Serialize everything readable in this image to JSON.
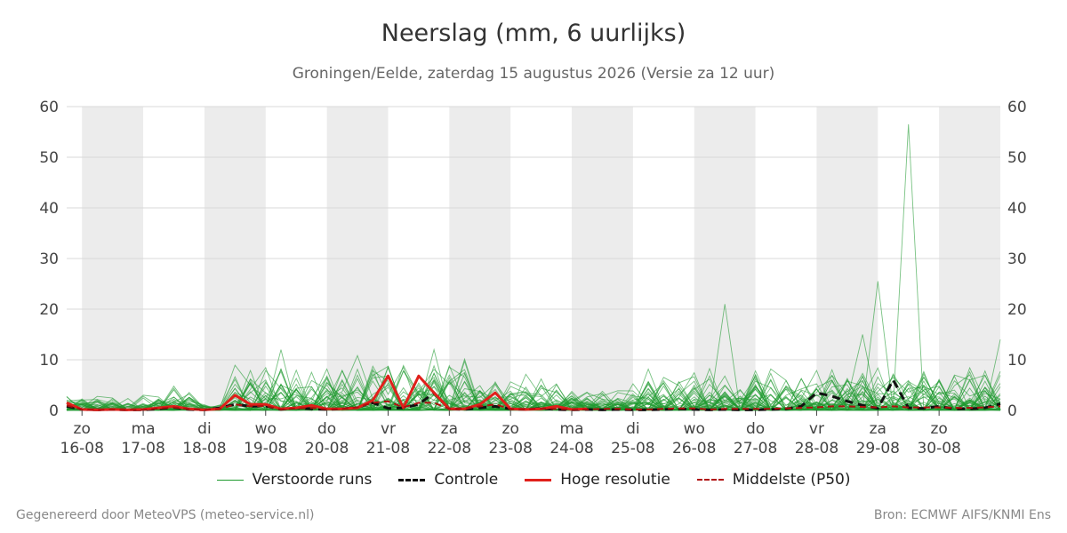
{
  "chart_data": {
    "type": "line",
    "title": "Neerslag (mm, 6 uurlijks)",
    "subtitle": "Groningen/Eelde, zaterdag 15 augustus 2026 (Versie za 12 uur)",
    "ylim": [
      0,
      60
    ],
    "yticks": [
      0,
      10,
      20,
      30,
      40,
      50,
      60
    ],
    "xlim": [
      -0.25,
      15
    ],
    "x_ticks": [
      {
        "day": "zo",
        "date": "16-08"
      },
      {
        "day": "ma",
        "date": "17-08"
      },
      {
        "day": "di",
        "date": "18-08"
      },
      {
        "day": "wo",
        "date": "19-08"
      },
      {
        "day": "do",
        "date": "20-08"
      },
      {
        "day": "vr",
        "date": "21-08"
      },
      {
        "day": "za",
        "date": "22-08"
      },
      {
        "day": "zo",
        "date": "23-08"
      },
      {
        "day": "ma",
        "date": "24-08"
      },
      {
        "day": "di",
        "date": "25-08"
      },
      {
        "day": "wo",
        "date": "26-08"
      },
      {
        "day": "do",
        "date": "27-08"
      },
      {
        "day": "vr",
        "date": "28-08"
      },
      {
        "day": "za",
        "date": "29-08"
      },
      {
        "day": "zo",
        "date": "30-08"
      }
    ],
    "shaded_days": [
      0,
      2,
      4,
      6,
      8,
      10,
      12,
      14
    ],
    "grid": true,
    "legend_placement": "bottom-center",
    "series": [
      {
        "name": "Controle",
        "color": "#111111",
        "style": "dashed",
        "x": [
          -0.25,
          0,
          0.25,
          0.5,
          0.75,
          1,
          1.25,
          1.5,
          1.75,
          2,
          2.25,
          2.5,
          2.75,
          3,
          3.25,
          3.5,
          3.75,
          4,
          4.25,
          4.5,
          4.75,
          5,
          5.25,
          5.5,
          5.75,
          6,
          6.25,
          6.5,
          6.75,
          7,
          7.25,
          7.5,
          7.75,
          8,
          8.25,
          8.5,
          8.75,
          9,
          9.25,
          9.5,
          9.75,
          10,
          10.25,
          10.5,
          10.75,
          11,
          11.25,
          11.5,
          11.75,
          12,
          12.25,
          12.5,
          12.75,
          13,
          13.25,
          13.5,
          13.75,
          14,
          14.25,
          14.5,
          14.75,
          15
        ],
        "y": [
          0.8,
          0.2,
          0.1,
          0.2,
          0.1,
          0.1,
          0.3,
          0.6,
          0.2,
          0.1,
          0.5,
          1.2,
          0.8,
          0.9,
          0.2,
          0.5,
          0.3,
          0.2,
          0.3,
          0.6,
          1.5,
          0.4,
          0.5,
          1.2,
          3.5,
          0.3,
          0.2,
          0.5,
          0.8,
          0.3,
          0.2,
          0.4,
          0.2,
          0.1,
          0.2,
          0.1,
          0.2,
          0.1,
          0.1,
          0.2,
          0.3,
          0.2,
          0.1,
          0.2,
          0.1,
          0.1,
          0.2,
          0.3,
          0.8,
          3.5,
          2.8,
          1.8,
          1.0,
          0.4,
          6.0,
          0.5,
          0.4,
          0.8,
          0.3,
          0.3,
          0.5,
          1.3
        ]
      },
      {
        "name": "Hoge resolutie",
        "color": "#e0201b",
        "style": "solid",
        "x": [
          -0.25,
          0,
          0.25,
          0.5,
          0.75,
          1,
          1.25,
          1.5,
          1.75,
          2,
          2.25,
          2.5,
          2.75,
          3,
          3.25,
          3.5,
          3.75,
          4,
          4.25,
          4.5,
          4.75,
          5,
          5.25,
          5.5,
          5.75,
          6,
          6.25,
          6.5,
          6.75,
          7,
          7.25,
          7.5,
          7.75,
          8,
          8.25
        ],
        "y": [
          1.5,
          0.2,
          0.1,
          0.2,
          0.1,
          0.2,
          0.5,
          0.8,
          0.3,
          0.1,
          0.3,
          3.0,
          1.2,
          1.2,
          0.3,
          0.5,
          1.0,
          0.3,
          0.3,
          0.5,
          2.0,
          6.8,
          0.5,
          6.8,
          3.5,
          0.3,
          0.3,
          1.2,
          3.5,
          0.3,
          0.2,
          0.3,
          0.8,
          0.2,
          0.3
        ]
      },
      {
        "name": "Middelste (P50)",
        "color": "#b01010",
        "style": "dashed",
        "x": [
          -0.25,
          0,
          0.25,
          0.5,
          0.75,
          1,
          1.25,
          1.5,
          1.75,
          2,
          2.25,
          2.5,
          2.75,
          3,
          3.25,
          3.5,
          3.75,
          4,
          4.25,
          4.5,
          4.75,
          5,
          5.25,
          5.5,
          5.75,
          6,
          6.25,
          6.5,
          6.75,
          7,
          7.25,
          7.5,
          7.75,
          8,
          8.25,
          8.5,
          8.75,
          9,
          9.25,
          9.5,
          9.75,
          10,
          10.25,
          10.5,
          10.75,
          11,
          11.25,
          11.5,
          11.75,
          12,
          12.25,
          12.5,
          12.75,
          13,
          13.25,
          13.5,
          13.75,
          14,
          14.25,
          14.5,
          14.75,
          15
        ],
        "y": [
          1.0,
          0.2,
          0.1,
          0.1,
          0.1,
          0.1,
          0.4,
          0.6,
          0.3,
          0.1,
          0.3,
          1.2,
          0.8,
          0.9,
          0.2,
          0.4,
          0.5,
          0.2,
          0.3,
          0.6,
          1.5,
          1.8,
          0.6,
          1.5,
          1.5,
          0.3,
          0.4,
          0.8,
          1.2,
          0.3,
          0.2,
          0.4,
          0.3,
          0.2,
          0.2,
          0.3,
          0.3,
          0.2,
          0.2,
          0.3,
          0.4,
          0.4,
          0.2,
          0.3,
          0.3,
          0.3,
          0.3,
          0.4,
          0.5,
          0.6,
          0.8,
          0.8,
          0.7,
          0.6,
          0.8,
          0.6,
          0.6,
          0.6,
          0.5,
          0.5,
          0.6,
          0.8
        ]
      }
    ],
    "ensemble": {
      "name": "Verstoorde runs",
      "color": "#1e9a2e",
      "member_count": 50
    }
  },
  "footer": {
    "left": "Gegenereerd door MeteoVPS (meteo-service.nl)",
    "right": "Bron: ECMWF AIFS/KNMI Ens"
  }
}
